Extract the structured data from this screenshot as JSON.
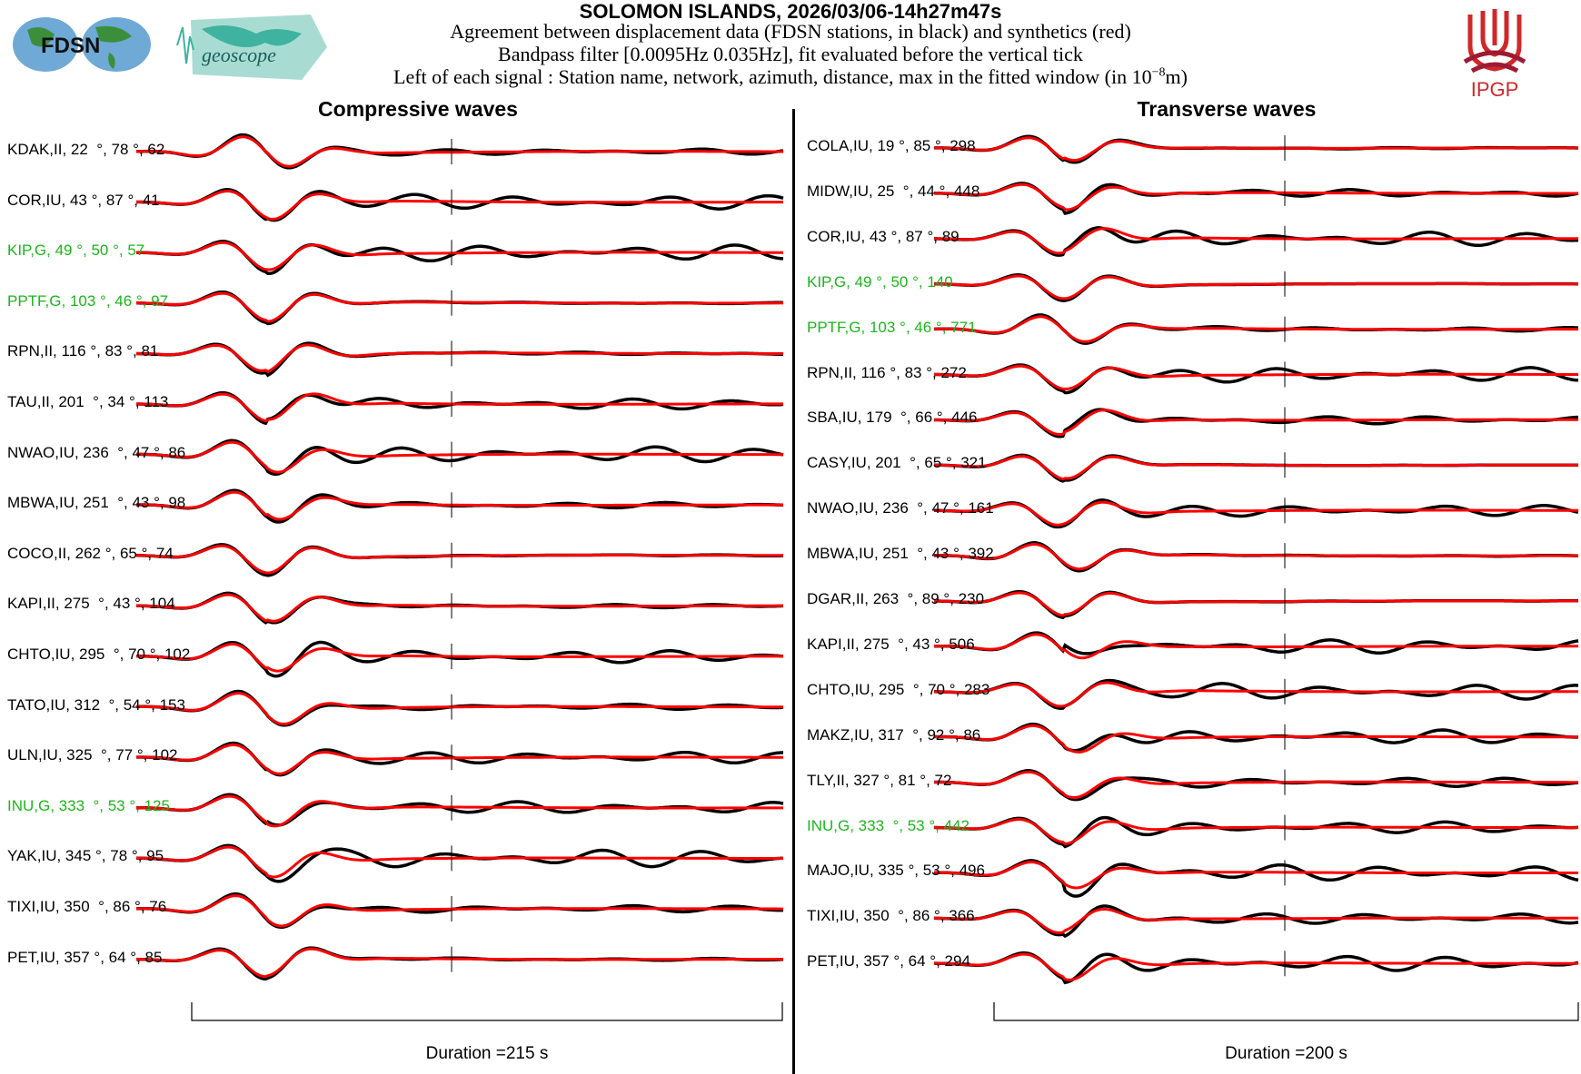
{
  "header": {
    "title": "SOLOMON ISLANDS, 2026/03/06-14h27m47s",
    "line1": "Agreement between displacement data (FDSN stations, in black) and synthetics (red)",
    "line2": "Bandpass filter [0.0095Hz 0.035Hz], fit evaluated before the vertical tick",
    "line3": "Left of each signal : Station name, network, azimuth, distance, max in the fitted window (in 10",
    "line3_exp": "−8",
    "line3_end": "m)",
    "logos": {
      "fdsn": "FDSN",
      "geoscope": "geoscope",
      "ipgp": "IPGP"
    }
  },
  "colors": {
    "data": "#000000",
    "synthetic": "#ff0000",
    "highlight": "#1db51d"
  },
  "chart_data": [
    {
      "type": "line",
      "title": "Compressive waves",
      "duration_label": "Duration =215 s",
      "duration_s": 215,
      "series": [
        "data (black)",
        "synthetics (red)"
      ],
      "stations": [
        {
          "label": "KDAK,II, 22  °, 78 °, 62",
          "g": false
        },
        {
          "label": "COR,IU, 43 °, 87 °, 41",
          "g": false
        },
        {
          "label": "KIP,G, 49 °, 50 °, 57",
          "g": true
        },
        {
          "label": "PPTF,G, 103 °, 46 °, 97",
          "g": true
        },
        {
          "label": "RPN,II, 116 °, 83 °, 81",
          "g": false
        },
        {
          "label": "TAU,II, 201  °, 34 °, 113",
          "g": false
        },
        {
          "label": "NWAO,IU, 236  °, 47 °, 86",
          "g": false
        },
        {
          "label": "MBWA,IU, 251  °, 43 °, 98",
          "g": false
        },
        {
          "label": "COCO,II, 262 °, 65 °, 74",
          "g": false
        },
        {
          "label": "KAPI,II, 275  °, 43 °, 104",
          "g": false
        },
        {
          "label": "CHTO,IU, 295  °, 70 °, 102",
          "g": false
        },
        {
          "label": "TATO,IU, 312  °, 54 °, 153",
          "g": false
        },
        {
          "label": "ULN,IU, 325  °, 77 °, 102",
          "g": false
        },
        {
          "label": "INU,G, 333  °, 53 °, 125",
          "g": true
        },
        {
          "label": "YAK,IU, 345 °, 78 °, 95",
          "g": false
        },
        {
          "label": "TIXI,IU, 350  °, 86 °, 76",
          "g": false
        },
        {
          "label": "PET,IU, 357 °, 64 °, 85",
          "g": false
        }
      ]
    },
    {
      "type": "line",
      "title": "Transverse waves",
      "duration_label": "Duration =200 s",
      "duration_s": 200,
      "series": [
        "data (black)",
        "synthetics (red)"
      ],
      "stations": [
        {
          "label": "COLA,IU, 19 °, 85 °, 298",
          "g": false
        },
        {
          "label": "MIDW,IU, 25  °, 44 °, 448",
          "g": false
        },
        {
          "label": "COR,IU, 43 °, 87 °, 89",
          "g": false
        },
        {
          "label": "KIP,G, 49 °, 50 °, 140",
          "g": true
        },
        {
          "label": "PPTF,G, 103 °, 46 °, 771",
          "g": true
        },
        {
          "label": "RPN,II, 116 °, 83 °, 272",
          "g": false
        },
        {
          "label": "SBA,IU, 179  °, 66 °, 446",
          "g": false
        },
        {
          "label": "CASY,IU, 201  °, 65 °, 321",
          "g": false
        },
        {
          "label": "NWAO,IU, 236  °, 47 °, 161",
          "g": false
        },
        {
          "label": "MBWA,IU, 251  °, 43 °, 392",
          "g": false
        },
        {
          "label": "DGAR,II, 263  °, 89 °, 230",
          "g": false
        },
        {
          "label": "KAPI,II, 275  °, 43 °, 506",
          "g": false
        },
        {
          "label": "CHTO,IU, 295  °, 70 °, 283",
          "g": false
        },
        {
          "label": "MAKZ,IU, 317  °, 92 °, 86",
          "g": false
        },
        {
          "label": "TLY,II, 327 °, 81 °, 72",
          "g": false
        },
        {
          "label": "INU,G, 333  °, 53 °, 442",
          "g": true
        },
        {
          "label": "MAJO,IU, 335 °, 53 °, 496",
          "g": false
        },
        {
          "label": "TIXI,IU, 350  °, 86 °, 366",
          "g": false
        },
        {
          "label": "PET,IU, 357 °, 64 °, 294",
          "g": false
        }
      ]
    }
  ]
}
